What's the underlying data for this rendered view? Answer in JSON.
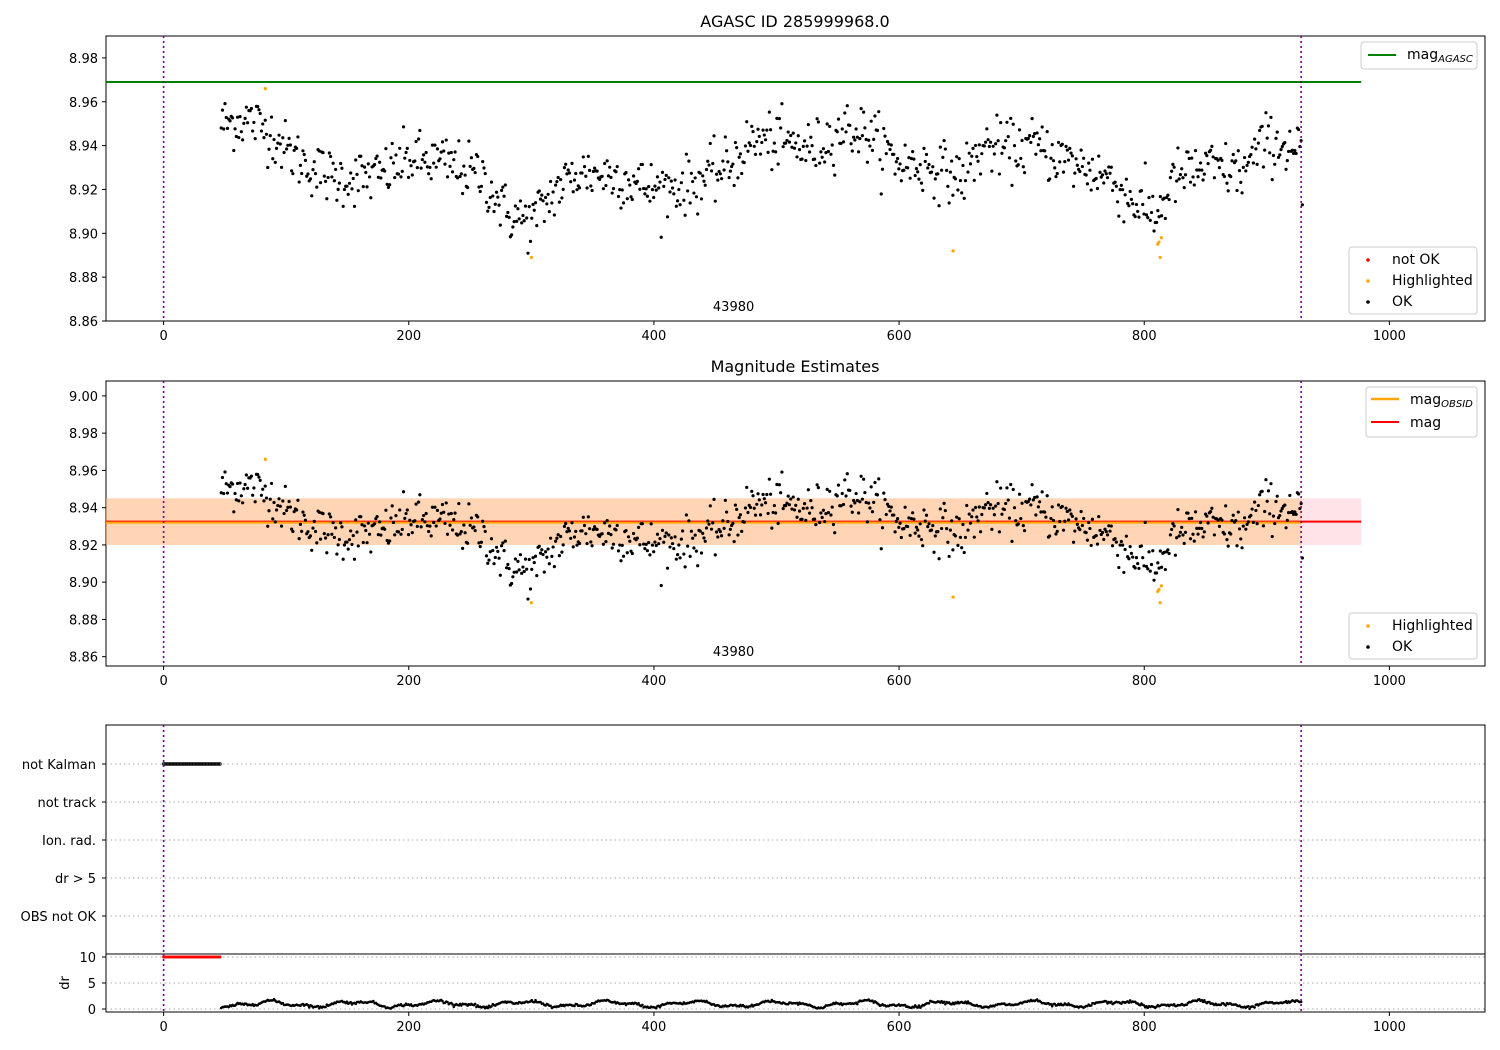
{
  "chart_data": [
    {
      "type": "scatter",
      "title": "AGASC ID 285999968.0",
      "xlim": [
        -47,
        1078
      ],
      "ylim": [
        8.86,
        8.99
      ],
      "xticks": [
        "0",
        "200",
        "400",
        "600",
        "800",
        "1000"
      ],
      "yticks": [
        "8.86",
        "8.88",
        "8.90",
        "8.92",
        "8.94",
        "8.96",
        "8.98"
      ],
      "obsid_label": "43980",
      "obsid_x": 465,
      "vlines": [
        0,
        928
      ],
      "hlines": [
        {
          "name": "mag",
          "subscript": "AGASC",
          "y": 8.969,
          "x": [
            -47,
            977
          ],
          "color": "#008000"
        }
      ],
      "legend_lines": [
        {
          "text": "mag",
          "sub": "AGASC",
          "color": "#008000"
        }
      ],
      "legend_points": [
        {
          "text": "not OK",
          "color": "#ff0000"
        },
        {
          "text": "Highlighted",
          "color": "#ffa500"
        },
        {
          "text": "OK",
          "color": "#000000"
        }
      ],
      "legend_lines_position": "upper right",
      "legend_points_position": "lower right",
      "highlighted": [
        [
          83,
          8.966
        ],
        [
          300,
          8.889
        ],
        [
          644,
          8.892
        ],
        [
          812,
          8.896
        ],
        [
          814,
          8.898
        ],
        [
          811,
          8.895
        ],
        [
          813,
          8.889
        ]
      ],
      "ok_series": {
        "x_range": [
          47,
          928
        ],
        "count": 860,
        "anchors": [
          [
            47,
            8.95
          ],
          [
            70,
            8.952
          ],
          [
            90,
            8.945
          ],
          [
            100,
            8.938
          ],
          [
            120,
            8.93
          ],
          [
            140,
            8.925
          ],
          [
            175,
            8.926
          ],
          [
            200,
            8.934
          ],
          [
            230,
            8.932
          ],
          [
            260,
            8.926
          ],
          [
            280,
            8.909
          ],
          [
            300,
            8.905
          ],
          [
            320,
            8.92
          ],
          [
            340,
            8.928
          ],
          [
            370,
            8.926
          ],
          [
            400,
            8.92
          ],
          [
            430,
            8.922
          ],
          [
            460,
            8.93
          ],
          [
            480,
            8.942
          ],
          [
            500,
            8.942
          ],
          [
            530,
            8.938
          ],
          [
            555,
            8.948
          ],
          [
            575,
            8.945
          ],
          [
            600,
            8.932
          ],
          [
            630,
            8.93
          ],
          [
            650,
            8.925
          ],
          [
            670,
            8.94
          ],
          [
            690,
            8.938
          ],
          [
            710,
            8.94
          ],
          [
            740,
            8.932
          ],
          [
            770,
            8.926
          ],
          [
            790,
            8.915
          ],
          [
            810,
            8.908
          ],
          [
            825,
            8.925
          ],
          [
            850,
            8.93
          ],
          [
            880,
            8.928
          ],
          [
            900,
            8.942
          ],
          [
            928,
            8.938
          ]
        ],
        "noise": 0.0085,
        "outliers": [
          [
            929,
            8.913
          ]
        ]
      }
    },
    {
      "type": "scatter",
      "title": "Magnitude Estimates",
      "xlim": [
        -47,
        1078
      ],
      "ylim": [
        8.855,
        9.008
      ],
      "xticks": [
        "0",
        "200",
        "400",
        "600",
        "800",
        "1000"
      ],
      "yticks": [
        "8.86",
        "8.88",
        "8.90",
        "8.92",
        "8.94",
        "8.96",
        "8.98",
        "9.00"
      ],
      "obsid_label": "43980",
      "obsid_x": 465,
      "vlines": [
        0,
        928
      ],
      "hlines": [
        {
          "name": "mag",
          "subscript": "",
          "y": 8.9325,
          "x": [
            -47,
            977
          ],
          "color": "#ff0000"
        },
        {
          "name": "mag",
          "subscript": "OBSID",
          "y": 8.9325,
          "x": [
            -47,
            928
          ],
          "color": "#ffa500"
        }
      ],
      "bands": [
        {
          "name": "mag",
          "y": [
            8.92,
            8.945
          ],
          "x": [
            -47,
            977
          ],
          "color": "#ffc0cb",
          "opacity": 0.45
        },
        {
          "name": "mag_OBSID",
          "y": [
            8.92,
            8.945
          ],
          "x": [
            -47,
            928
          ],
          "color": "#ffa500",
          "opacity": 0.22
        }
      ],
      "legend_lines": [
        {
          "text": "mag",
          "sub": "OBSID",
          "color": "#ffa500"
        },
        {
          "text": "mag",
          "sub": "",
          "color": "#ff0000"
        }
      ],
      "legend_points": [
        {
          "text": "Highlighted",
          "color": "#ffa500"
        },
        {
          "text": "OK",
          "color": "#000000"
        }
      ],
      "legend_lines_position": "upper right",
      "legend_points_position": "lower right"
    },
    {
      "type": "scatter",
      "title": "",
      "xlim": [
        -47,
        1078
      ],
      "categories": [
        "not Kalman",
        "not track",
        "Ion. rad.",
        "dr > 5",
        "OBS not OK"
      ],
      "flag_points": {
        "category": "not Kalman",
        "x_range": [
          0,
          46
        ],
        "count": 40
      },
      "vlines": [
        0,
        928
      ]
    },
    {
      "type": "scatter",
      "ylabel": "dr",
      "xlim": [
        -47,
        1078
      ],
      "ylim": [
        -0.5,
        10.5
      ],
      "xticks": [
        "0",
        "200",
        "400",
        "600",
        "800",
        "1000"
      ],
      "yticks": [
        "0",
        "5",
        "10"
      ],
      "vlines": [
        0,
        928
      ],
      "clipped": {
        "x_range": [
          0,
          46
        ],
        "y": 10,
        "color": "#ff0000",
        "count": 40
      },
      "dr_series": {
        "x_range": [
          47,
          928
        ],
        "count": 860,
        "mean": 0.95,
        "noise": 0.45
      }
    }
  ]
}
